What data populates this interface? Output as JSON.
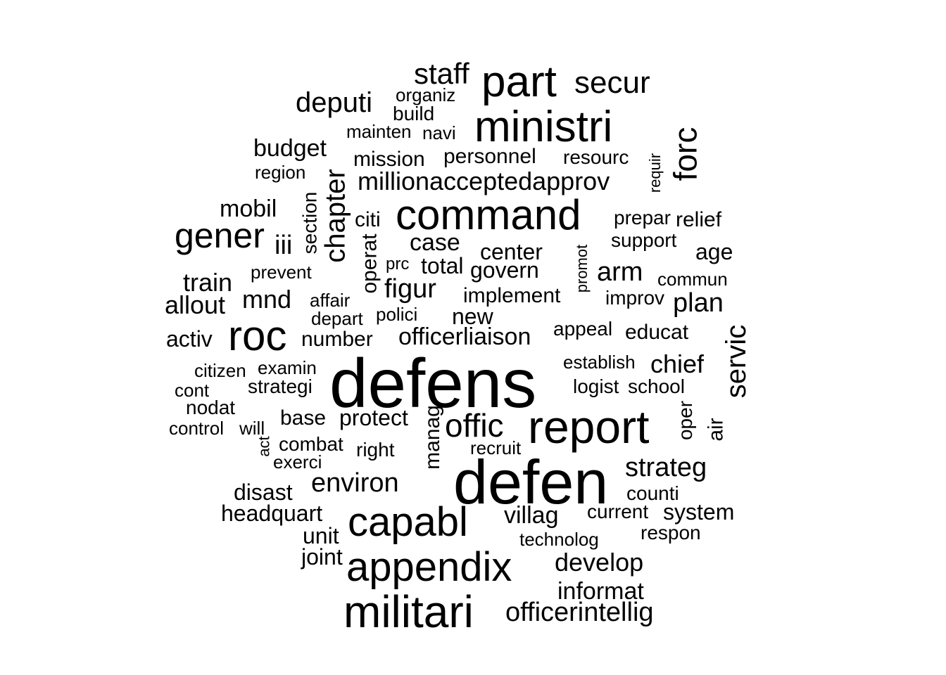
{
  "wordcloud": {
    "color": "#000000",
    "words": [
      {
        "text": "defens"
      },
      {
        "text": "defen"
      },
      {
        "text": "report"
      },
      {
        "text": "militari"
      },
      {
        "text": "appendix"
      },
      {
        "text": "capabl"
      },
      {
        "text": "command"
      },
      {
        "text": "ministri"
      },
      {
        "text": "part"
      },
      {
        "text": "roc"
      },
      {
        "text": "gener"
      },
      {
        "text": "forc"
      },
      {
        "text": "offic"
      },
      {
        "text": "chapter"
      },
      {
        "text": "servic"
      },
      {
        "text": "staff"
      },
      {
        "text": "secur"
      },
      {
        "text": "deputi"
      },
      {
        "text": "environ"
      },
      {
        "text": "strateg"
      },
      {
        "text": "officerintellig"
      },
      {
        "text": "develop"
      },
      {
        "text": "figur"
      },
      {
        "text": "millionacceptedapprov"
      },
      {
        "text": "arm"
      },
      {
        "text": "plan"
      },
      {
        "text": "allout"
      },
      {
        "text": "train"
      },
      {
        "text": "mnd"
      },
      {
        "text": "chief"
      },
      {
        "text": "informat"
      },
      {
        "text": "officerliaison"
      },
      {
        "text": "case"
      },
      {
        "text": "budget"
      },
      {
        "text": "mobil"
      },
      {
        "text": "iii"
      },
      {
        "text": "villag"
      },
      {
        "text": "system"
      },
      {
        "text": "unit"
      },
      {
        "text": "disast"
      },
      {
        "text": "headquart"
      },
      {
        "text": "protect"
      },
      {
        "text": "total"
      },
      {
        "text": "govern"
      },
      {
        "text": "center"
      },
      {
        "text": "implement"
      },
      {
        "text": "new"
      },
      {
        "text": "activ"
      },
      {
        "text": "base"
      },
      {
        "text": "age"
      },
      {
        "text": "personnel"
      },
      {
        "text": "mission"
      },
      {
        "text": "educat"
      },
      {
        "text": "appeal"
      },
      {
        "text": "number"
      },
      {
        "text": "manag"
      },
      {
        "text": "air"
      },
      {
        "text": "oper"
      },
      {
        "text": "operat"
      },
      {
        "text": "section"
      },
      {
        "text": "counti"
      },
      {
        "text": "respon"
      },
      {
        "text": "joint"
      },
      {
        "text": "relief"
      },
      {
        "text": "citi"
      },
      {
        "text": "support"
      },
      {
        "text": "prepar"
      },
      {
        "text": "resourc"
      },
      {
        "text": "organiz"
      },
      {
        "text": "build"
      },
      {
        "text": "mainten"
      },
      {
        "text": "navi"
      },
      {
        "text": "region"
      },
      {
        "text": "prevent"
      },
      {
        "text": "affair"
      },
      {
        "text": "depart"
      },
      {
        "text": "polici"
      },
      {
        "text": "prc"
      },
      {
        "text": "citizen"
      },
      {
        "text": "examin"
      },
      {
        "text": "strategi"
      },
      {
        "text": "cont"
      },
      {
        "text": "nodat"
      },
      {
        "text": "control"
      },
      {
        "text": "will"
      },
      {
        "text": "act"
      },
      {
        "text": "combat"
      },
      {
        "text": "exerci"
      },
      {
        "text": "right"
      },
      {
        "text": "recruit"
      },
      {
        "text": "establish"
      },
      {
        "text": "logist"
      },
      {
        "text": "school"
      },
      {
        "text": "current"
      },
      {
        "text": "technolog"
      },
      {
        "text": "commun"
      },
      {
        "text": "improv"
      },
      {
        "text": "promot"
      },
      {
        "text": "requir"
      }
    ]
  }
}
